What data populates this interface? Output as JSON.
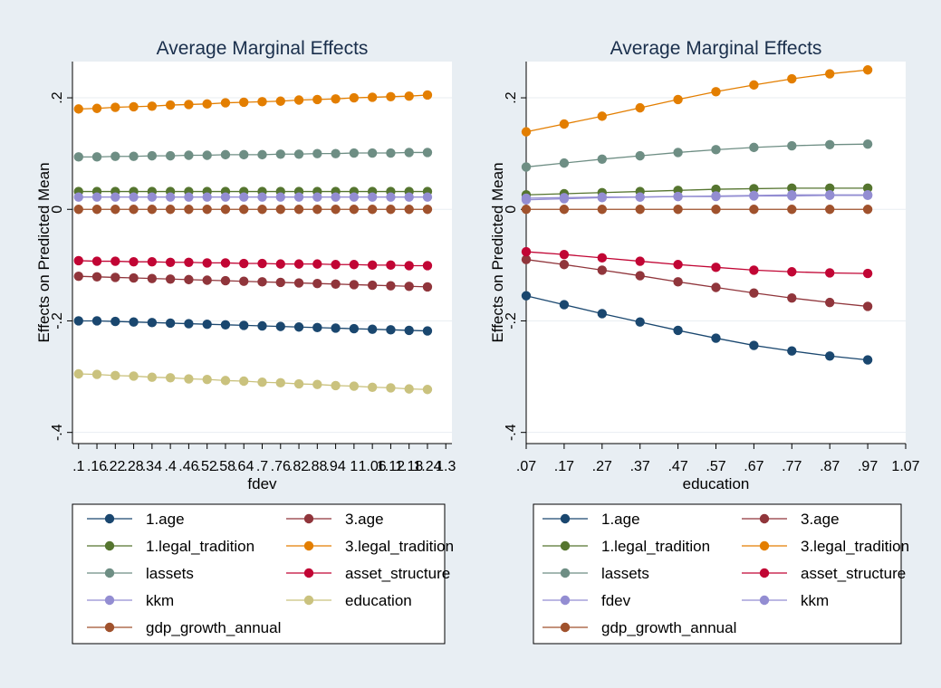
{
  "colors": {
    "1.age": "#1a476f",
    "3.age": "#90353b",
    "1.legal_tradition": "#55752f",
    "3.legal_tradition": "#e37e00",
    "lassets": "#6e8e84",
    "asset_structure": "#c10534",
    "kkm": "#938dd2",
    "fdev": "#938dd2",
    "education": "#cac27e",
    "gdp_growth_annual": "#a0522d"
  },
  "chart_data": [
    {
      "type": "line",
      "title": "Average Marginal Effects",
      "xlabel": "fdev",
      "ylabel": "Effects on Predicted Mean",
      "xlim": [
        0.08,
        1.32
      ],
      "ylim": [
        -0.42,
        0.265
      ],
      "yticks": [
        -0.4,
        -0.2,
        0,
        0.2
      ],
      "ytick_labels": [
        "-.4",
        "-.2",
        "0",
        ".2"
      ],
      "xticks": [
        0.1,
        0.16,
        0.22,
        0.28,
        0.34,
        0.4,
        0.46,
        0.52,
        0.58,
        0.64,
        0.7,
        0.76,
        0.82,
        0.88,
        0.94,
        1.0,
        1.06,
        1.12,
        1.18,
        1.24,
        1.3
      ],
      "xtick_labels": [
        ".1",
        ".16",
        ".22",
        ".28",
        ".34",
        ".4",
        ".46",
        ".52",
        ".58",
        ".64",
        ".7",
        ".76",
        ".82",
        ".88",
        ".94",
        "1",
        "1.06",
        "1.12",
        "1.18",
        "1.24",
        "1.3"
      ],
      "x": [
        0.1,
        0.16,
        0.22,
        0.28,
        0.34,
        0.4,
        0.46,
        0.52,
        0.58,
        0.64,
        0.7,
        0.76,
        0.82,
        0.88,
        0.94,
        1.0,
        1.06,
        1.12,
        1.18,
        1.24
      ],
      "series": [
        {
          "name": "1.age",
          "values": [
            -0.2,
            -0.2,
            -0.201,
            -0.202,
            -0.203,
            -0.204,
            -0.205,
            -0.206,
            -0.207,
            -0.208,
            -0.209,
            -0.21,
            -0.211,
            -0.212,
            -0.213,
            -0.214,
            -0.215,
            -0.216,
            -0.217,
            -0.218
          ]
        },
        {
          "name": "3.age",
          "values": [
            -0.12,
            -0.121,
            -0.122,
            -0.123,
            -0.124,
            -0.125,
            -0.126,
            -0.127,
            -0.128,
            -0.129,
            -0.13,
            -0.131,
            -0.132,
            -0.133,
            -0.134,
            -0.135,
            -0.136,
            -0.137,
            -0.138,
            -0.139
          ]
        },
        {
          "name": "1.legal_tradition",
          "values": [
            0.032,
            0.032,
            0.032,
            0.032,
            0.032,
            0.032,
            0.032,
            0.032,
            0.032,
            0.032,
            0.032,
            0.032,
            0.032,
            0.032,
            0.032,
            0.032,
            0.032,
            0.032,
            0.032,
            0.032
          ]
        },
        {
          "name": "3.legal_tradition",
          "values": [
            0.18,
            0.181,
            0.183,
            0.184,
            0.185,
            0.187,
            0.188,
            0.189,
            0.191,
            0.192,
            0.193,
            0.194,
            0.196,
            0.197,
            0.198,
            0.2,
            0.201,
            0.202,
            0.203,
            0.205
          ]
        },
        {
          "name": "lassets",
          "values": [
            0.094,
            0.094,
            0.095,
            0.095,
            0.096,
            0.096,
            0.097,
            0.097,
            0.098,
            0.098,
            0.098,
            0.099,
            0.099,
            0.1,
            0.1,
            0.101,
            0.101,
            0.101,
            0.102,
            0.102
          ]
        },
        {
          "name": "asset_structure",
          "values": [
            -0.092,
            -0.093,
            -0.093,
            -0.094,
            -0.094,
            -0.095,
            -0.095,
            -0.096,
            -0.096,
            -0.097,
            -0.097,
            -0.098,
            -0.098,
            -0.098,
            -0.099,
            -0.099,
            -0.1,
            -0.1,
            -0.101,
            -0.101
          ]
        },
        {
          "name": "kkm",
          "values": [
            0.022,
            0.022,
            0.022,
            0.022,
            0.022,
            0.022,
            0.022,
            0.022,
            0.022,
            0.022,
            0.022,
            0.022,
            0.022,
            0.022,
            0.022,
            0.022,
            0.022,
            0.022,
            0.022,
            0.022
          ]
        },
        {
          "name": "education",
          "values": [
            -0.295,
            -0.296,
            -0.298,
            -0.299,
            -0.301,
            -0.302,
            -0.304,
            -0.305,
            -0.307,
            -0.308,
            -0.31,
            -0.311,
            -0.313,
            -0.314,
            -0.316,
            -0.317,
            -0.319,
            -0.32,
            -0.322,
            -0.323
          ]
        },
        {
          "name": "gdp_growth_annual",
          "values": [
            0,
            0,
            0,
            0,
            0,
            0,
            0,
            0,
            0,
            0,
            0,
            0,
            0,
            0,
            0,
            0,
            0,
            0,
            0,
            0
          ]
        }
      ],
      "legend_placement": "bottom",
      "grid": true
    },
    {
      "type": "line",
      "title": "Average Marginal Effects",
      "xlabel": "education",
      "ylabel": "Effects on Predicted Mean",
      "xlim": [
        0.07,
        1.07
      ],
      "ylim": [
        -0.42,
        0.265
      ],
      "yticks": [
        -0.4,
        -0.2,
        0,
        0.2
      ],
      "ytick_labels": [
        "-.4",
        "-.2",
        "0",
        ".2"
      ],
      "xticks": [
        0.07,
        0.17,
        0.27,
        0.37,
        0.47,
        0.57,
        0.67,
        0.77,
        0.87,
        0.97,
        1.07
      ],
      "xtick_labels": [
        ".07",
        ".17",
        ".27",
        ".37",
        ".47",
        ".57",
        ".67",
        ".77",
        ".87",
        ".97",
        "1.07"
      ],
      "x": [
        0.07,
        0.17,
        0.27,
        0.37,
        0.47,
        0.57,
        0.67,
        0.77,
        0.87,
        0.97
      ],
      "series": [
        {
          "name": "1.age",
          "values": [
            -0.155,
            -0.171,
            -0.187,
            -0.202,
            -0.217,
            -0.231,
            -0.244,
            -0.254,
            -0.263,
            -0.27
          ]
        },
        {
          "name": "3.age",
          "values": [
            -0.09,
            -0.099,
            -0.109,
            -0.119,
            -0.13,
            -0.14,
            -0.15,
            -0.159,
            -0.167,
            -0.174
          ]
        },
        {
          "name": "1.legal_tradition",
          "values": [
            0.026,
            0.028,
            0.03,
            0.032,
            0.034,
            0.036,
            0.037,
            0.038,
            0.038,
            0.038
          ]
        },
        {
          "name": "3.legal_tradition",
          "values": [
            0.139,
            0.153,
            0.167,
            0.182,
            0.197,
            0.211,
            0.223,
            0.234,
            0.243,
            0.25
          ]
        },
        {
          "name": "lassets",
          "values": [
            0.076,
            0.083,
            0.09,
            0.096,
            0.102,
            0.107,
            0.111,
            0.114,
            0.116,
            0.117
          ]
        },
        {
          "name": "asset_structure",
          "values": [
            -0.076,
            -0.081,
            -0.087,
            -0.093,
            -0.099,
            -0.104,
            -0.109,
            -0.112,
            -0.114,
            -0.115
          ]
        },
        {
          "name": "fdev",
          "values": [
            0.02,
            0.021,
            0.022,
            0.022,
            0.023,
            0.023,
            0.024,
            0.024,
            0.025,
            0.025
          ]
        },
        {
          "name": "kkm",
          "values": [
            0.017,
            0.019,
            0.021,
            0.022,
            0.023,
            0.024,
            0.025,
            0.026,
            0.026,
            0.026
          ]
        },
        {
          "name": "gdp_growth_annual",
          "values": [
            0,
            0,
            0,
            0,
            0,
            0,
            0,
            0,
            0,
            0
          ]
        }
      ],
      "legend_placement": "bottom",
      "grid": true
    }
  ],
  "panels": [
    {
      "legend": [
        [
          "1.age",
          "3.age"
        ],
        [
          "1.legal_tradition",
          "3.legal_tradition"
        ],
        [
          "lassets",
          "asset_structure"
        ],
        [
          "kkm",
          "education"
        ],
        [
          "gdp_growth_annual"
        ]
      ]
    },
    {
      "legend": [
        [
          "1.age",
          "3.age"
        ],
        [
          "1.legal_tradition",
          "3.legal_tradition"
        ],
        [
          "lassets",
          "asset_structure"
        ],
        [
          "fdev",
          "kkm"
        ],
        [
          "gdp_growth_annual"
        ]
      ]
    }
  ]
}
